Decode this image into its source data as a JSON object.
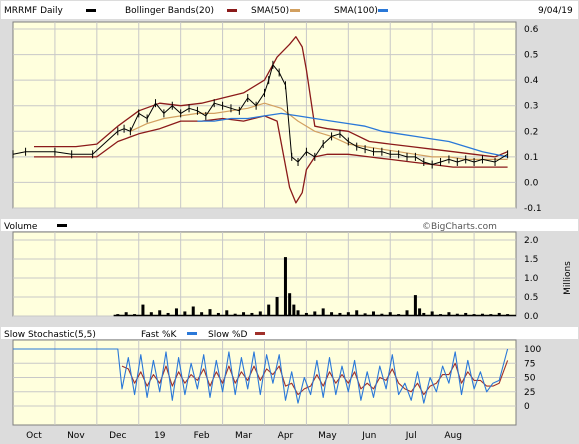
{
  "colors": {
    "plot_bg": "#ffffdd",
    "outer_bg": "#dcdcdc",
    "frame": "#7f7f7f",
    "grid": "#c8c8c8",
    "price": "#000000",
    "bollinger": "#8b1a1a",
    "sma50": "#d2a060",
    "sma100": "#2a78d8",
    "volume": "#000000",
    "fast_k": "#2a78d8",
    "slow_d": "#a0302a",
    "watermark": "#555555"
  },
  "header": {
    "ticker": "MRRMF Daily",
    "bollinger": "Bollinger Bands(20)",
    "sma50": "SMA(50)",
    "sma100": "SMA(100)",
    "date": "9/04/19"
  },
  "volume_panel": {
    "title": "Volume",
    "watermark": "©BigCharts.com",
    "unit": "Millions"
  },
  "stoch_panel": {
    "title": "Slow Stochastic(5,5)",
    "fast_k": "Fast %K",
    "slow_d": "Slow %D"
  },
  "chart_data": [
    {
      "type": "line",
      "title": "MRRMF Daily",
      "x_months": [
        "Oct",
        "Nov",
        "Dec",
        "19",
        "Feb",
        "Mar",
        "Apr",
        "May",
        "Jun",
        "Jul",
        "Aug"
      ],
      "x_month_pos": [
        0.5,
        1.5,
        2.5,
        3.5,
        4.5,
        5.5,
        6.5,
        7.5,
        8.5,
        9.5,
        10.5
      ],
      "x_range": [
        0,
        12
      ],
      "y_ticks": [
        "0.6",
        "0.5",
        "0.4",
        "0.3",
        "0.2",
        "0.1",
        "0.0",
        "-0.1"
      ],
      "y_tick_values": [
        0.6,
        0.5,
        0.4,
        0.3,
        0.2,
        0.1,
        0.0,
        -0.1
      ],
      "ylim": [
        -0.1,
        0.6
      ],
      "grid": true,
      "series": [
        {
          "name": "MRRMF Daily",
          "x": [
            0.0,
            0.3,
            1.0,
            1.4,
            1.9,
            2.5,
            2.65,
            2.8,
            3.0,
            3.2,
            3.4,
            3.6,
            3.8,
            4.0,
            4.2,
            4.4,
            4.6,
            4.8,
            5.0,
            5.2,
            5.4,
            5.6,
            5.8,
            6.0,
            6.1,
            6.2,
            6.35,
            6.5,
            6.65,
            6.8,
            7.0,
            7.2,
            7.4,
            7.6,
            7.8,
            8.0,
            8.2,
            8.4,
            8.6,
            8.8,
            9.0,
            9.2,
            9.4,
            9.6,
            9.8,
            10.0,
            10.2,
            10.4,
            10.6,
            10.8,
            11.0,
            11.2,
            11.5,
            11.8
          ],
          "values": [
            0.11,
            0.12,
            0.12,
            0.11,
            0.11,
            0.2,
            0.21,
            0.2,
            0.27,
            0.25,
            0.31,
            0.27,
            0.3,
            0.27,
            0.29,
            0.28,
            0.26,
            0.31,
            0.3,
            0.29,
            0.28,
            0.33,
            0.3,
            0.35,
            0.4,
            0.46,
            0.43,
            0.38,
            0.1,
            0.08,
            0.12,
            0.1,
            0.15,
            0.18,
            0.19,
            0.16,
            0.14,
            0.13,
            0.12,
            0.12,
            0.11,
            0.11,
            0.1,
            0.1,
            0.08,
            0.07,
            0.08,
            0.09,
            0.08,
            0.09,
            0.08,
            0.09,
            0.08,
            0.11
          ]
        },
        {
          "name": "Bollinger Bands(20) upper",
          "x": [
            0.5,
            1.0,
            1.5,
            2.0,
            2.5,
            3.0,
            3.5,
            4.0,
            4.5,
            5.0,
            5.5,
            6.0,
            6.3,
            6.6,
            6.75,
            6.9,
            7.0,
            7.2,
            7.5,
            8.0,
            8.5,
            9.0,
            9.5,
            10.0,
            10.5,
            11.0,
            11.5,
            11.8
          ],
          "values": [
            0.14,
            0.14,
            0.14,
            0.15,
            0.22,
            0.28,
            0.31,
            0.3,
            0.31,
            0.33,
            0.35,
            0.4,
            0.49,
            0.54,
            0.57,
            0.53,
            0.44,
            0.22,
            0.21,
            0.2,
            0.16,
            0.15,
            0.14,
            0.13,
            0.12,
            0.11,
            0.1,
            0.12
          ]
        },
        {
          "name": "Bollinger Bands(20) lower",
          "x": [
            0.5,
            1.0,
            1.5,
            2.0,
            2.5,
            3.0,
            3.5,
            4.0,
            4.5,
            5.0,
            5.5,
            6.0,
            6.3,
            6.6,
            6.75,
            6.9,
            7.0,
            7.2,
            7.5,
            8.0,
            8.5,
            9.0,
            9.5,
            10.0,
            10.5,
            11.0,
            11.5,
            11.8
          ],
          "values": [
            0.1,
            0.1,
            0.1,
            0.1,
            0.16,
            0.19,
            0.21,
            0.24,
            0.24,
            0.25,
            0.24,
            0.26,
            0.24,
            -0.02,
            -0.08,
            -0.04,
            0.05,
            0.1,
            0.11,
            0.11,
            0.1,
            0.09,
            0.08,
            0.07,
            0.06,
            0.06,
            0.06,
            0.06
          ]
        },
        {
          "name": "SMA(50)",
          "x": [
            2.8,
            3.2,
            3.6,
            4.0,
            4.4,
            4.8,
            5.2,
            5.6,
            6.0,
            6.4,
            6.8,
            7.2,
            7.6,
            8.0,
            8.4,
            8.8,
            9.2,
            9.6,
            10.0,
            10.4,
            10.8,
            11.2,
            11.8
          ],
          "values": [
            0.2,
            0.23,
            0.25,
            0.26,
            0.27,
            0.27,
            0.28,
            0.29,
            0.31,
            0.29,
            0.24,
            0.2,
            0.18,
            0.15,
            0.14,
            0.13,
            0.12,
            0.11,
            0.1,
            0.1,
            0.09,
            0.09,
            0.09
          ]
        },
        {
          "name": "SMA(100)",
          "x": [
            4.4,
            4.8,
            5.2,
            5.6,
            6.0,
            6.4,
            6.8,
            7.2,
            7.6,
            8.0,
            8.4,
            8.8,
            9.2,
            9.6,
            10.0,
            10.4,
            10.8,
            11.2,
            11.8
          ],
          "values": [
            0.24,
            0.24,
            0.25,
            0.25,
            0.26,
            0.27,
            0.26,
            0.25,
            0.24,
            0.23,
            0.22,
            0.2,
            0.19,
            0.18,
            0.17,
            0.16,
            0.14,
            0.12,
            0.1
          ]
        }
      ]
    },
    {
      "type": "bar",
      "title": "Volume",
      "ylabel": "Millions",
      "y_ticks": [
        "2.0",
        "1.5",
        "1.0",
        "0.5",
        "0.0"
      ],
      "y_tick_values": [
        2.0,
        1.5,
        1.0,
        0.5,
        0.0
      ],
      "ylim": [
        0,
        2.0
      ],
      "x": [
        2.5,
        2.7,
        2.9,
        3.1,
        3.3,
        3.5,
        3.7,
        3.9,
        4.1,
        4.3,
        4.5,
        4.7,
        4.9,
        5.1,
        5.3,
        5.5,
        5.7,
        5.9,
        6.1,
        6.3,
        6.5,
        6.6,
        6.7,
        6.8,
        7.0,
        7.2,
        7.4,
        7.6,
        7.8,
        8.0,
        8.2,
        8.4,
        8.6,
        8.8,
        9.0,
        9.2,
        9.4,
        9.6,
        9.7,
        9.8,
        10.0,
        10.2,
        10.4,
        10.6,
        10.8,
        11.0,
        11.2,
        11.4,
        11.6,
        11.8
      ],
      "values": [
        0.05,
        0.1,
        0.05,
        0.3,
        0.1,
        0.15,
        0.08,
        0.2,
        0.12,
        0.25,
        0.1,
        0.18,
        0.08,
        0.15,
        0.06,
        0.1,
        0.08,
        0.12,
        0.3,
        0.5,
        1.55,
        0.6,
        0.3,
        0.15,
        0.08,
        0.12,
        0.2,
        0.1,
        0.08,
        0.1,
        0.15,
        0.07,
        0.12,
        0.06,
        0.1,
        0.05,
        0.15,
        0.55,
        0.2,
        0.08,
        0.12,
        0.05,
        0.1,
        0.06,
        0.08,
        0.05,
        0.06,
        0.05,
        0.08,
        0.05
      ]
    },
    {
      "type": "line",
      "title": "Slow Stochastic(5,5)",
      "y_ticks": [
        "100",
        "75",
        "50",
        "25",
        "0"
      ],
      "y_tick_values": [
        100,
        75,
        50,
        25,
        0
      ],
      "ylim": [
        0,
        100
      ],
      "series": [
        {
          "name": "Fast %K",
          "x": [
            0.0,
            2.5,
            2.6,
            2.75,
            2.9,
            3.05,
            3.2,
            3.35,
            3.5,
            3.65,
            3.8,
            3.95,
            4.1,
            4.25,
            4.4,
            4.55,
            4.7,
            4.85,
            5.0,
            5.15,
            5.3,
            5.45,
            5.6,
            5.75,
            5.9,
            6.05,
            6.2,
            6.35,
            6.5,
            6.65,
            6.8,
            6.95,
            7.1,
            7.25,
            7.4,
            7.55,
            7.7,
            7.85,
            8.0,
            8.15,
            8.3,
            8.45,
            8.6,
            8.75,
            8.9,
            9.05,
            9.2,
            9.35,
            9.5,
            9.65,
            9.8,
            9.95,
            10.1,
            10.25,
            10.4,
            10.55,
            10.7,
            10.85,
            11.0,
            11.15,
            11.3,
            11.45,
            11.6,
            11.8
          ],
          "values": [
            100,
            100,
            30,
            85,
            20,
            90,
            15,
            80,
            25,
            95,
            10,
            85,
            20,
            75,
            30,
            90,
            15,
            80,
            25,
            95,
            20,
            85,
            30,
            95,
            20,
            90,
            40,
            90,
            10,
            60,
            5,
            50,
            20,
            80,
            15,
            85,
            20,
            70,
            25,
            80,
            10,
            60,
            15,
            70,
            30,
            90,
            20,
            40,
            10,
            60,
            5,
            50,
            25,
            70,
            40,
            95,
            20,
            80,
            30,
            60,
            25,
            40,
            45,
            100
          ]
        },
        {
          "name": "Slow %D",
          "x": [
            2.6,
            2.75,
            2.9,
            3.05,
            3.2,
            3.35,
            3.5,
            3.65,
            3.8,
            3.95,
            4.1,
            4.25,
            4.4,
            4.55,
            4.7,
            4.85,
            5.0,
            5.15,
            5.3,
            5.45,
            5.6,
            5.75,
            5.9,
            6.05,
            6.2,
            6.35,
            6.5,
            6.65,
            6.8,
            6.95,
            7.1,
            7.25,
            7.4,
            7.55,
            7.7,
            7.85,
            8.0,
            8.15,
            8.3,
            8.45,
            8.6,
            8.75,
            8.9,
            9.05,
            9.2,
            9.35,
            9.5,
            9.65,
            9.8,
            9.95,
            10.1,
            10.25,
            10.4,
            10.55,
            10.7,
            10.85,
            11.0,
            11.15,
            11.3,
            11.45,
            11.6,
            11.8
          ],
          "values": [
            70,
            65,
            40,
            60,
            35,
            55,
            40,
            70,
            35,
            60,
            40,
            55,
            45,
            65,
            35,
            60,
            40,
            70,
            40,
            60,
            45,
            70,
            45,
            65,
            55,
            70,
            35,
            40,
            20,
            30,
            35,
            55,
            35,
            60,
            40,
            55,
            40,
            60,
            30,
            40,
            30,
            50,
            45,
            65,
            40,
            30,
            25,
            40,
            20,
            35,
            40,
            55,
            55,
            75,
            40,
            60,
            45,
            45,
            35,
            35,
            40,
            80
          ]
        }
      ]
    }
  ]
}
